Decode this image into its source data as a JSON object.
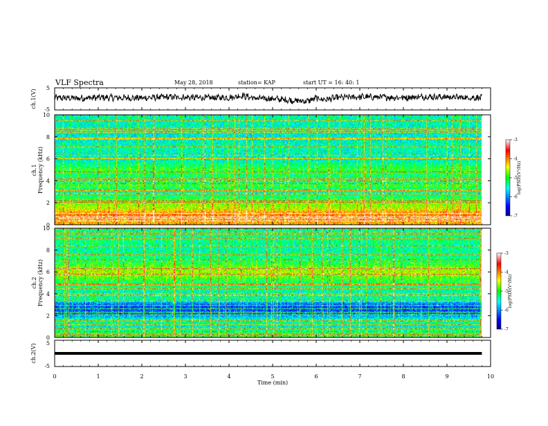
{
  "header": {
    "title": "VLF Spectra",
    "date": "May 28, 2018",
    "station": "station= KAP",
    "start": "start  UT =   16: 40: 1"
  },
  "chart_data": [
    {
      "type": "line",
      "name": "ch1-waveform",
      "ylabel": "ch.1(V)",
      "xlim": [
        0,
        10
      ],
      "ylim": [
        -5,
        5
      ],
      "y_ticks": [
        "5",
        "-5"
      ],
      "color": "#000000",
      "x": [
        0,
        0.5,
        1,
        1.5,
        2,
        2.5,
        3,
        3.5,
        4,
        4.3,
        4.6,
        5,
        5.5,
        5.8,
        6,
        6.2,
        6.5,
        7,
        7.5,
        8,
        8.5,
        9,
        9.5,
        9.8
      ],
      "values": [
        0.5,
        0.3,
        0.6,
        0.5,
        0.4,
        0.8,
        0.7,
        0.5,
        0.6,
        1.5,
        0.2,
        0.1,
        -0.8,
        -1.0,
        0.3,
        -0.3,
        0.6,
        0.9,
        0.8,
        0.6,
        1.0,
        0.8,
        0.6,
        0.5
      ]
    },
    {
      "type": "heatmap",
      "name": "ch1-spectrogram",
      "ylabel": "ch.1 Frequency (kHz)",
      "xlim": [
        0,
        10
      ],
      "ylim": [
        0,
        10
      ],
      "y_ticks": [
        "0",
        "2",
        "4",
        "6",
        "8",
        "10"
      ],
      "colorbar": {
        "label": "log(PSD)(V²/Hz)",
        "range": [
          -7,
          -3
        ],
        "ticks": [
          "-3",
          "-4",
          "-5",
          "-6",
          "-7"
        ]
      },
      "band_levels": [
        {
          "f": 0.5,
          "level": -4.2
        },
        {
          "f": 1.0,
          "level": -4.0
        },
        {
          "f": 1.5,
          "level": -4.6
        },
        {
          "f": 2.0,
          "level": -4.8
        },
        {
          "f": 2.5,
          "level": -5.2
        },
        {
          "f": 3.0,
          "level": -5.5
        },
        {
          "f": 3.5,
          "level": -5.0
        },
        {
          "f": 4.0,
          "level": -5.4
        },
        {
          "f": 5.0,
          "level": -5.0
        },
        {
          "f": 6.0,
          "level": -5.6
        },
        {
          "f": 7.0,
          "level": -5.4
        },
        {
          "f": 8.0,
          "level": -5.6
        },
        {
          "f": 9.0,
          "level": -5.5
        },
        {
          "f": 10.0,
          "level": -5.4
        }
      ]
    },
    {
      "type": "heatmap",
      "name": "ch2-spectrogram",
      "ylabel": "ch.2 Frequency (kHz)",
      "xlim": [
        0,
        10
      ],
      "ylim": [
        0,
        10
      ],
      "y_ticks": [
        "0",
        "2",
        "4",
        "6",
        "8",
        "10"
      ],
      "colorbar": {
        "label": "log(PSD)(V²/Hz)",
        "range": [
          -7,
          -3
        ],
        "ticks": [
          "-3",
          "-4",
          "-5",
          "-6",
          "-7"
        ]
      },
      "band_levels": [
        {
          "f": 0.5,
          "level": -5.2
        },
        {
          "f": 1.0,
          "level": -5.6
        },
        {
          "f": 1.5,
          "level": -5.3
        },
        {
          "f": 2.0,
          "level": -6.0
        },
        {
          "f": 2.5,
          "level": -6.3
        },
        {
          "f": 3.0,
          "level": -6.2
        },
        {
          "f": 3.5,
          "level": -5.4
        },
        {
          "f": 4.0,
          "level": -5.5
        },
        {
          "f": 5.0,
          "level": -5.2
        },
        {
          "f": 6.0,
          "level": -4.6
        },
        {
          "f": 7.0,
          "level": -5.2
        },
        {
          "f": 8.0,
          "level": -5.4
        },
        {
          "f": 9.0,
          "level": -5.3
        },
        {
          "f": 10.0,
          "level": -5.4
        }
      ]
    },
    {
      "type": "line",
      "name": "ch2-waveform",
      "ylabel": "ch.2(V)",
      "xlim": [
        0,
        10
      ],
      "ylim": [
        -5,
        5
      ],
      "y_ticks": [
        "5",
        "-5"
      ],
      "color": "#000000",
      "x": [
        0,
        9.8
      ],
      "values": [
        0,
        0
      ]
    }
  ],
  "x_axis": {
    "label": "Time (min)",
    "ticks": [
      "0",
      "1",
      "2",
      "3",
      "4",
      "5",
      "6",
      "7",
      "8",
      "9",
      "10"
    ]
  }
}
